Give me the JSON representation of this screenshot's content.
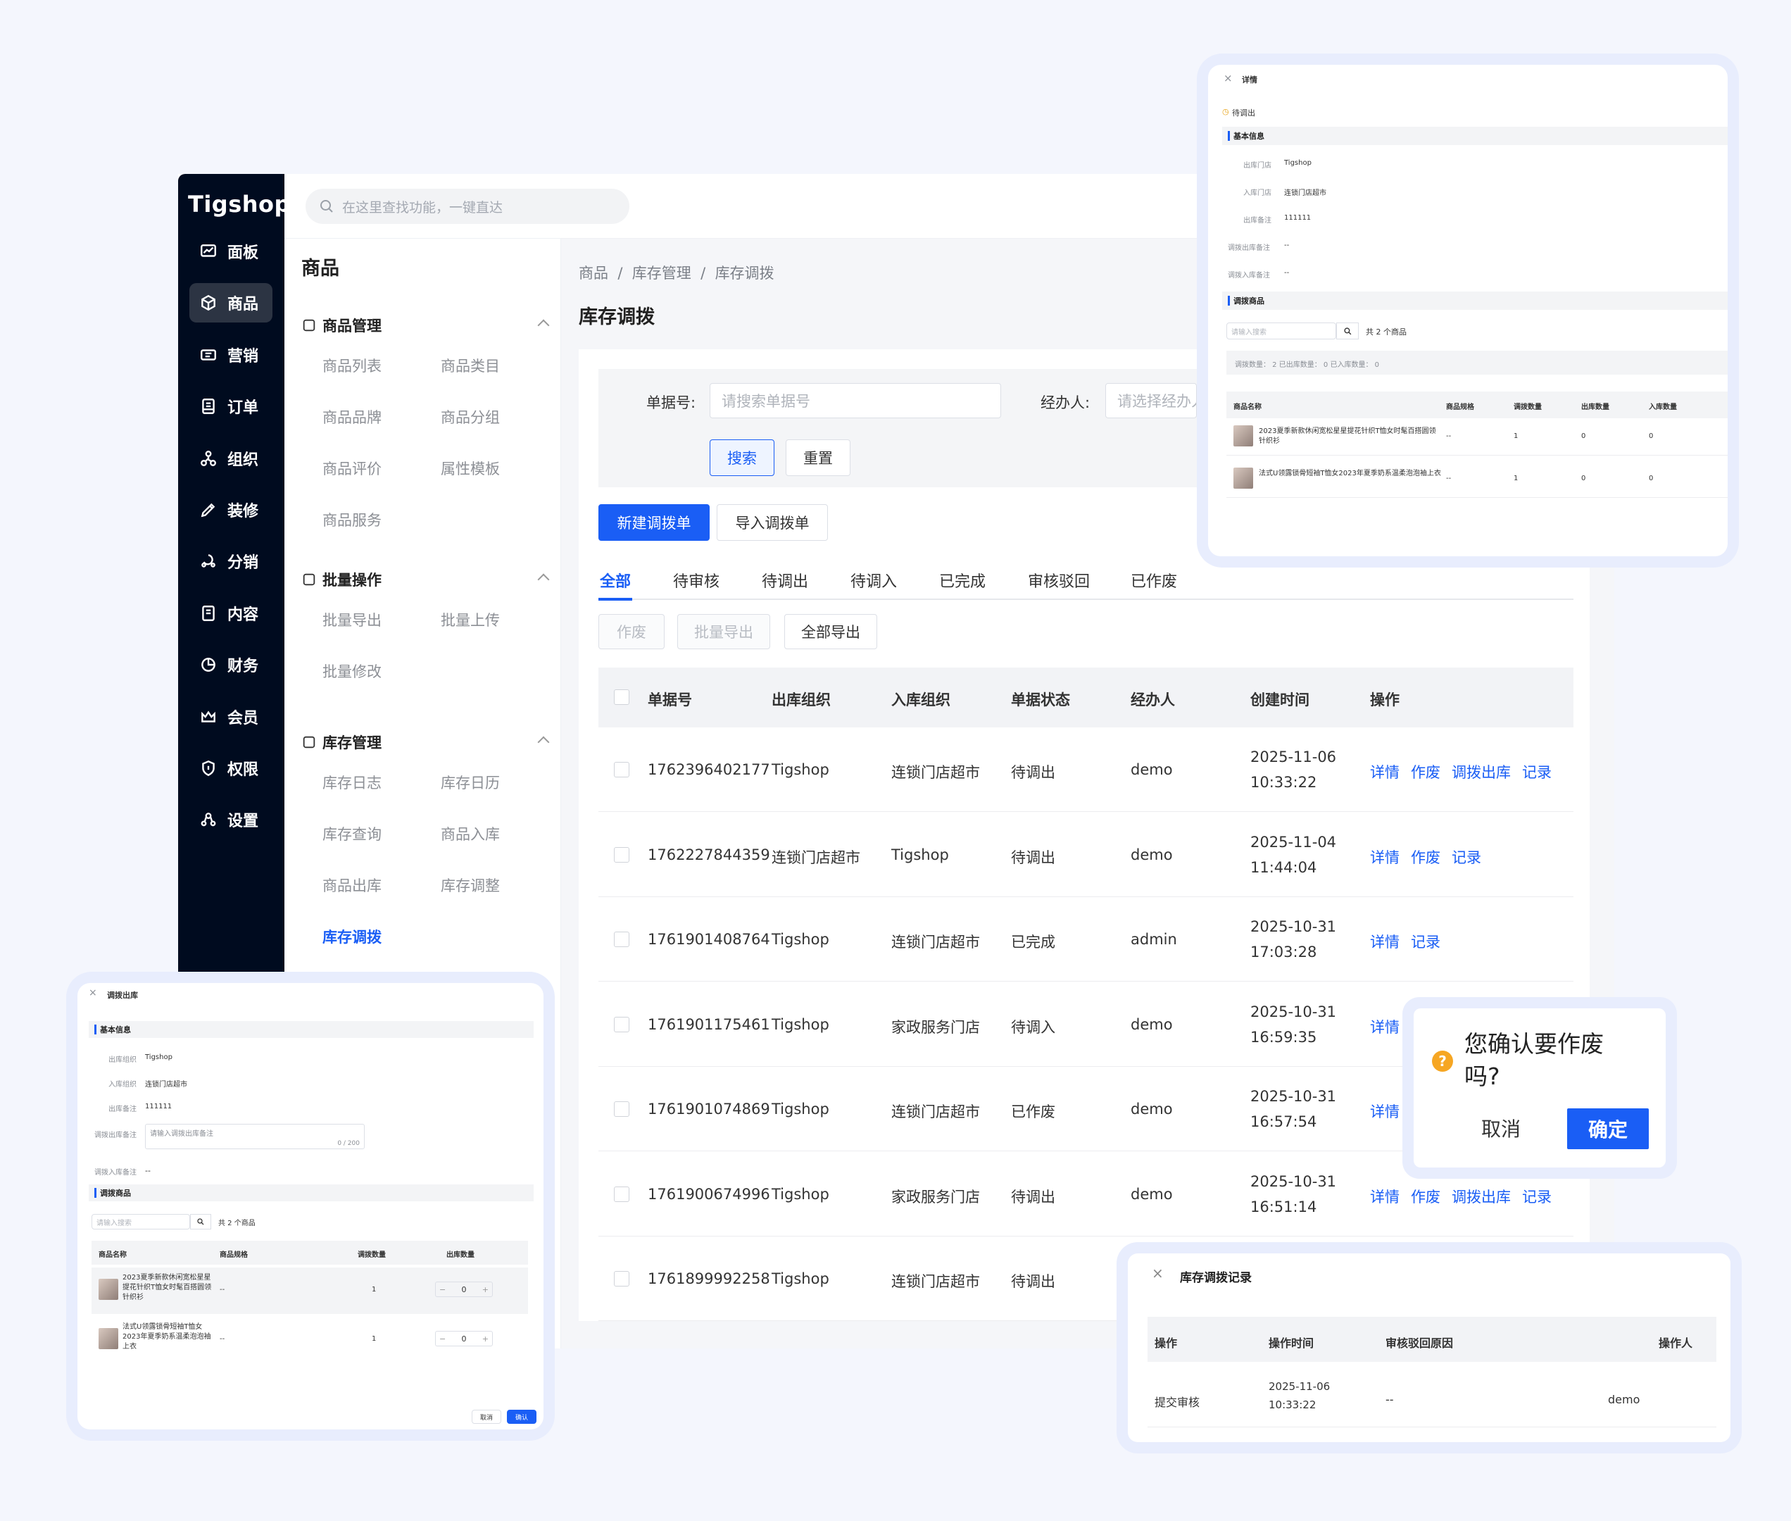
{
  "app": {
    "logo": "Tigshop",
    "search_placeholder": "在这里查找功能，一键直达"
  },
  "rail": [
    {
      "label": "面板",
      "icon": "chart-icon"
    },
    {
      "label": "商品",
      "icon": "cube-icon",
      "active": true
    },
    {
      "label": "营销",
      "icon": "ticket-icon"
    },
    {
      "label": "订单",
      "icon": "document-icon"
    },
    {
      "label": "组织",
      "icon": "org-icon"
    },
    {
      "label": "装修",
      "icon": "brush-icon"
    },
    {
      "label": "分销",
      "icon": "share-icon"
    },
    {
      "label": "内容",
      "icon": "content-icon"
    },
    {
      "label": "财务",
      "icon": "pie-icon"
    },
    {
      "label": "会员",
      "icon": "crown-icon"
    },
    {
      "label": "权限",
      "icon": "shield-icon"
    },
    {
      "label": "设置",
      "icon": "settings-icon"
    }
  ],
  "sub": {
    "title": "商品",
    "groups": [
      {
        "label": "商品管理",
        "items": [
          "商品列表",
          "商品类目",
          "商品品牌",
          "商品分组",
          "商品评价",
          "属性模板",
          "商品服务"
        ]
      },
      {
        "label": "批量操作",
        "items": [
          "批量导出",
          "批量上传",
          "批量修改"
        ]
      },
      {
        "label": "库存管理",
        "items": [
          "库存日志",
          "库存日历",
          "库存查询",
          "商品入库",
          "商品出库",
          "库存调整",
          "库存调拨"
        ]
      }
    ],
    "active": "库存调拨"
  },
  "breadcrumb": [
    "商品",
    "库存管理",
    "库存调拨"
  ],
  "page_title": "库存调拨",
  "filter": {
    "order_label": "单据号:",
    "order_placeholder": "请搜索单据号",
    "handler_label": "经办人:",
    "handler_placeholder": "请选择经办人",
    "search": "搜索",
    "reset": "重置"
  },
  "actions": {
    "create": "新建调拨单",
    "import": "导入调拨单"
  },
  "tabs": [
    "全部",
    "待审核",
    "待调出",
    "待调入",
    "已完成",
    "审核驳回",
    "已作废"
  ],
  "bulk": {
    "void": "作废",
    "batch_export": "批量导出",
    "export_all": "全部导出"
  },
  "columns": [
    "单据号",
    "出库组织",
    "入库组织",
    "单据状态",
    "经办人",
    "创建时间",
    "操作"
  ],
  "rows": [
    {
      "id": "1762396402177",
      "from": "Tigshop",
      "to": "连锁门店超市",
      "status": "待调出",
      "handler": "demo",
      "date": "2025-11-06",
      "time": "10:33:22",
      "ops": [
        "详情",
        "作废",
        "调拨出库",
        "记录"
      ]
    },
    {
      "id": "1762227844359",
      "from": "连锁门店超市",
      "to": "Tigshop",
      "status": "待调出",
      "handler": "demo",
      "date": "2025-11-04",
      "time": "11:44:04",
      "ops": [
        "详情",
        "作废",
        "记录"
      ]
    },
    {
      "id": "1761901408764",
      "from": "Tigshop",
      "to": "连锁门店超市",
      "status": "已完成",
      "handler": "admin",
      "date": "2025-10-31",
      "time": "17:03:28",
      "ops": [
        "详情",
        "记录"
      ]
    },
    {
      "id": "1761901175461",
      "from": "Tigshop",
      "to": "家政服务门店",
      "status": "待调入",
      "handler": "demo",
      "date": "2025-10-31",
      "time": "16:59:35",
      "ops": [
        "详情"
      ]
    },
    {
      "id": "1761901074869",
      "from": "Tigshop",
      "to": "连锁门店超市",
      "status": "已作废",
      "handler": "demo",
      "date": "2025-10-31",
      "time": "16:57:54",
      "ops": [
        "详情"
      ]
    },
    {
      "id": "1761900674996",
      "from": "Tigshop",
      "to": "家政服务门店",
      "status": "待调出",
      "handler": "demo",
      "date": "2025-10-31",
      "time": "16:51:14",
      "ops": [
        "详情",
        "作废",
        "调拨出库",
        "记录"
      ]
    },
    {
      "id": "1761899992258",
      "from": "Tigshop",
      "to": "连锁门店超市",
      "status": "待调出",
      "handler": "",
      "date": "",
      "time": "",
      "ops": []
    }
  ],
  "detail": {
    "title": "详情",
    "status": "待调出",
    "basic": "基本信息",
    "fields": [
      [
        "出库门店",
        "Tigshop"
      ],
      [
        "入库门店",
        "连锁门店超市"
      ],
      [
        "出库备注",
        "111111"
      ],
      [
        "调拨出库备注",
        "--"
      ],
      [
        "调拨入库备注",
        "--"
      ]
    ],
    "goods_title": "调拨商品",
    "search_placeholder": "请输入搜索",
    "count": "共 2 个商品",
    "summary": "调拨数量： 2    已出库数量： 0    已入库数量： 0",
    "cols": [
      "商品名称",
      "商品规格",
      "调拨数量",
      "出库数量",
      "入库数量"
    ],
    "items": [
      {
        "name": "2023夏季新款休闲宽松星星提花针织T恤女时髦百搭圆领针织衫",
        "spec": "--",
        "qty": "1",
        "out": "0",
        "in": "0"
      },
      {
        "name": "法式U领露锁骨短袖T恤女2023年夏季奶系温柔泡泡袖上衣",
        "spec": "--",
        "qty": "1",
        "out": "0",
        "in": "0"
      }
    ]
  },
  "outbound": {
    "title": "调拨出库",
    "basic": "基本信息",
    "fields": [
      [
        "出库组织",
        "Tigshop"
      ],
      [
        "入库组织",
        "连锁门店超市"
      ],
      [
        "出库备注",
        "111111"
      ]
    ],
    "remark_label": "调拨出库备注",
    "remark_placeholder": "请输入调拨出库备注",
    "remark_count": "0 / 200",
    "in_label": "调拨入库备注",
    "in_value": "--",
    "goods_title": "调拨商品",
    "search_placeholder": "请输入搜索",
    "count": "共 2 个商品",
    "cols": [
      "商品名称",
      "商品规格",
      "调拨数量",
      "出库数量"
    ],
    "items": [
      {
        "name": "2023夏季新款休闲宽松星星提花针织T恤女时髦百搭圆领针织衫",
        "spec": "--",
        "qty": "1",
        "out": "0"
      },
      {
        "name": "法式U领露锁骨短袖T恤女2023年夏季奶系温柔泡泡袖上衣",
        "spec": "--",
        "qty": "1",
        "out": "0"
      }
    ],
    "cancel": "取消",
    "ok": "确认"
  },
  "confirm": {
    "message": "您确认要作废吗?",
    "cancel": "取消",
    "ok": "确定"
  },
  "records": {
    "title": "库存调拨记录",
    "cols": [
      "操作",
      "操作时间",
      "审核驳回原因",
      "操作人"
    ],
    "rows": [
      {
        "op": "提交审核",
        "date": "2025-11-06",
        "time": "10:33:22",
        "reason": "--",
        "user": "demo"
      }
    ]
  }
}
